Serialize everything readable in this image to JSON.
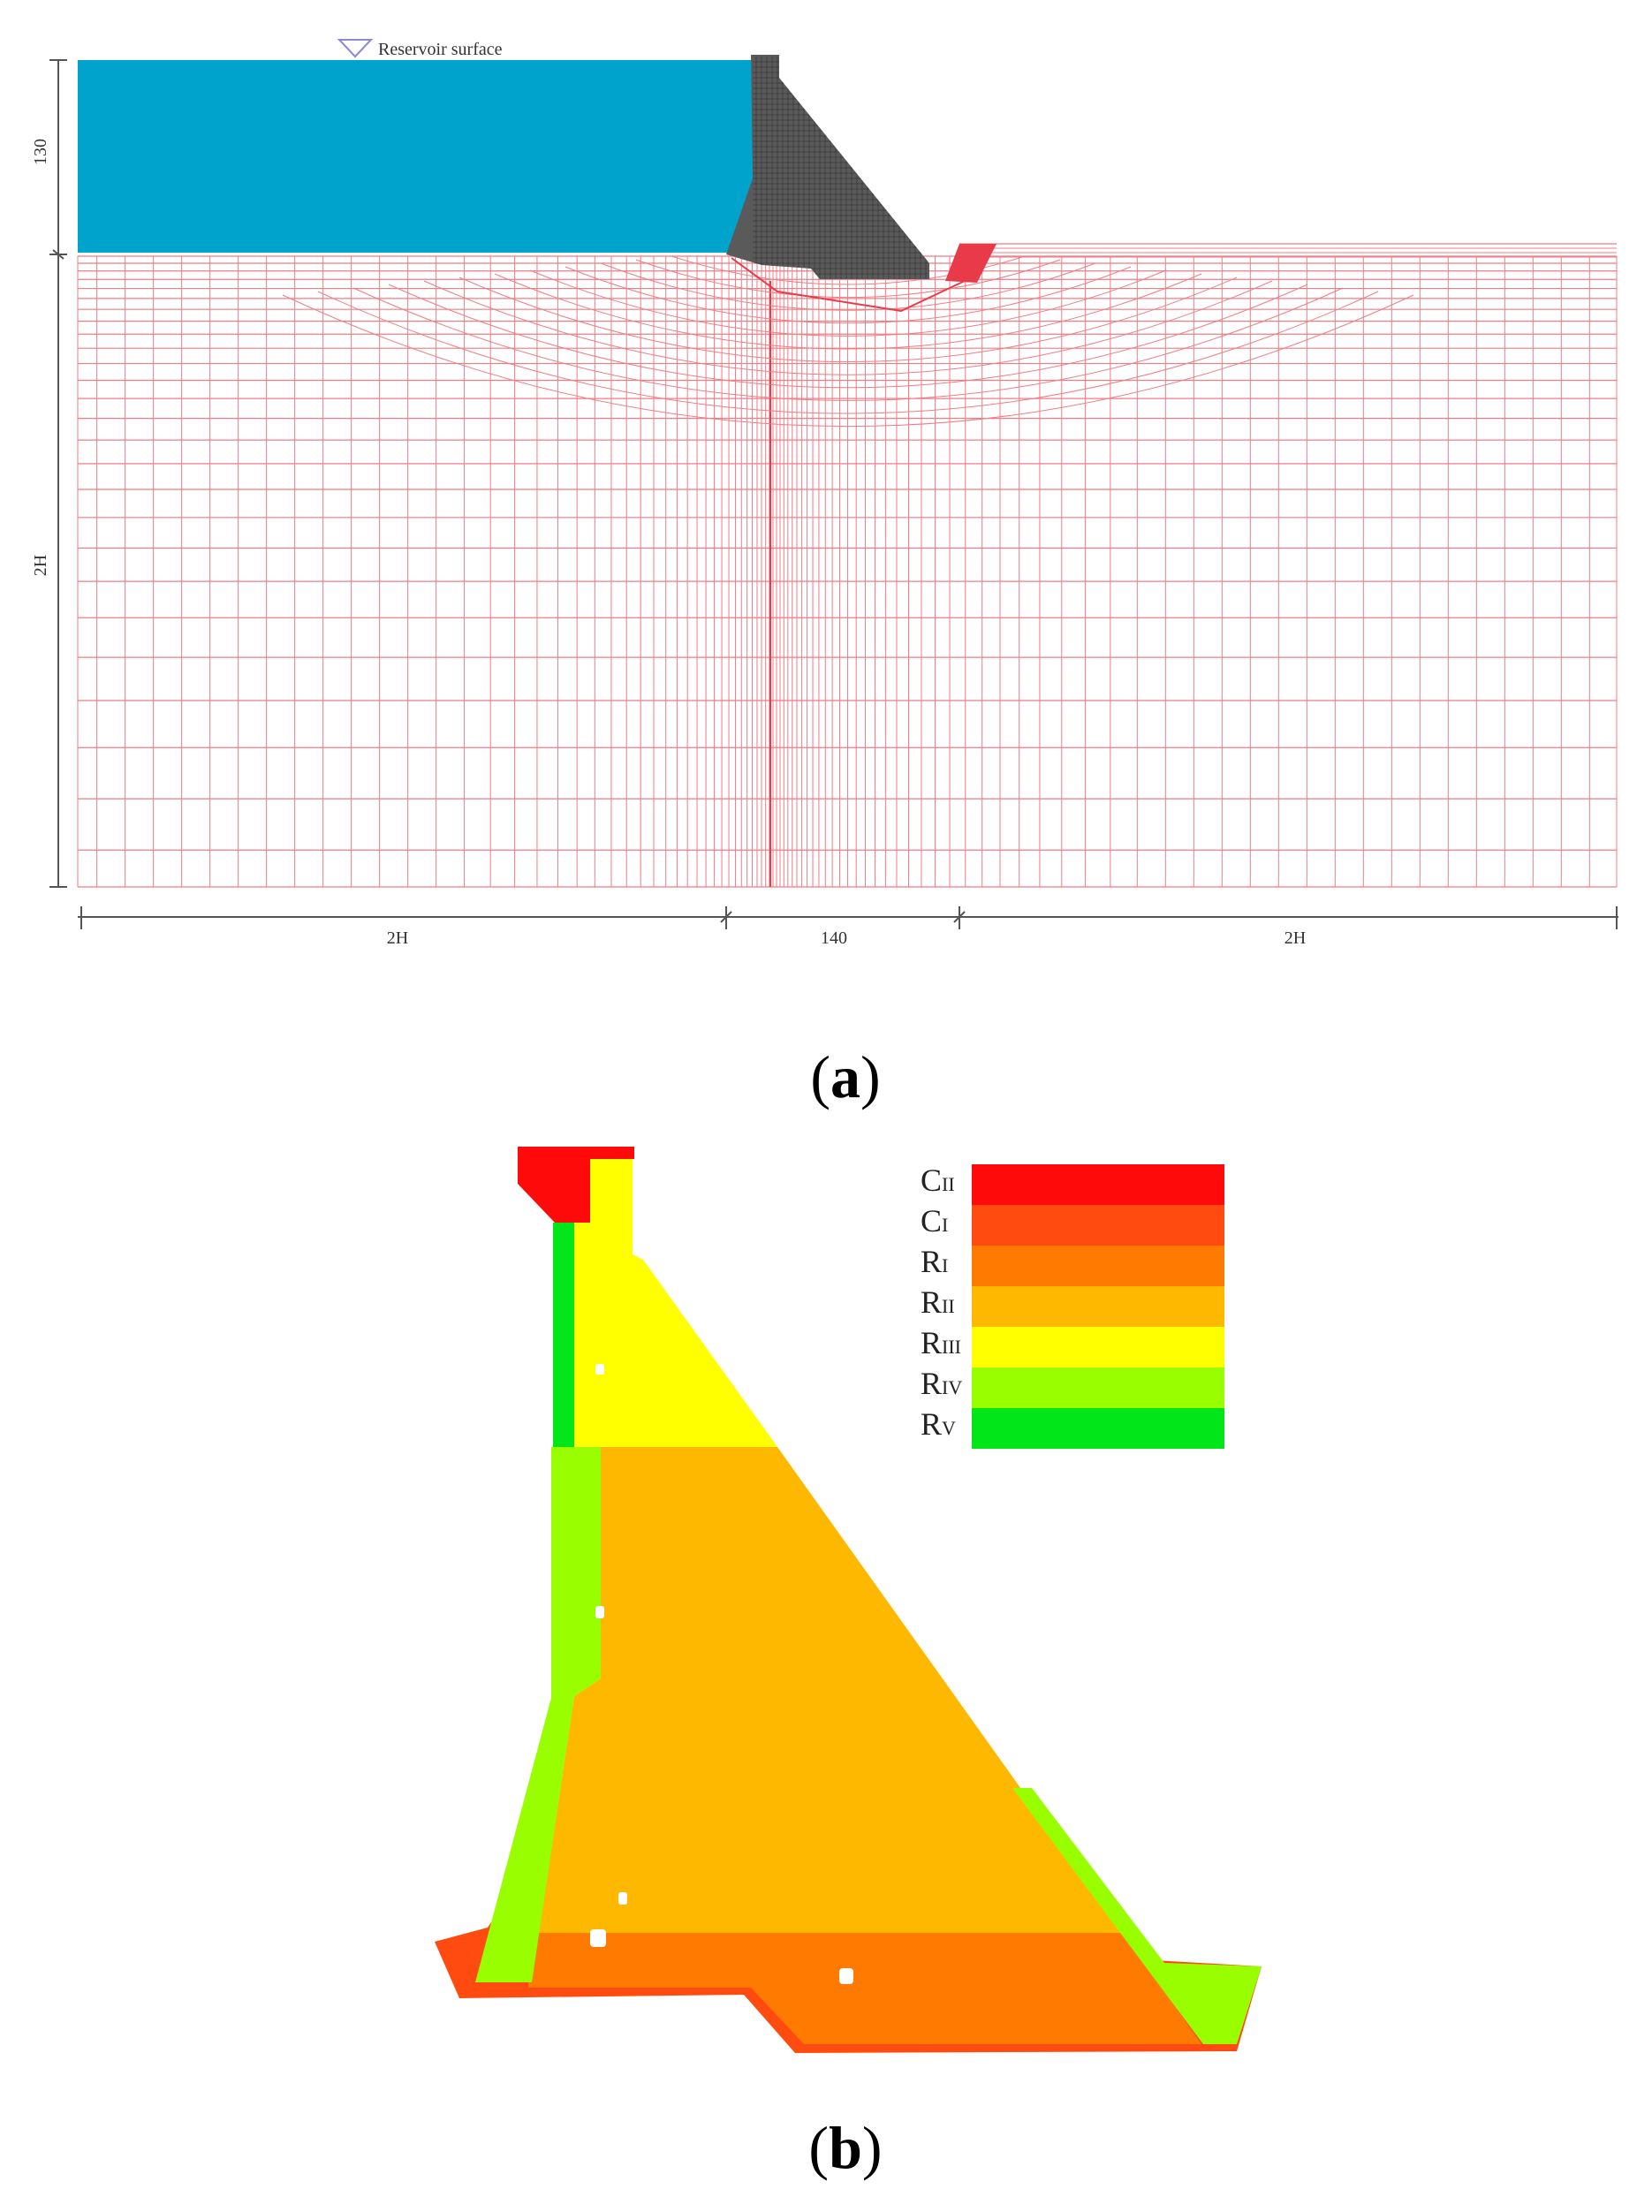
{
  "panel_a": {
    "reservoir_label": "Reservoir surface",
    "dim_height_top": "130",
    "dim_height_bottom": "2H",
    "dim_width_left": "2H",
    "dim_width_middle": "140",
    "dim_width_right": "2H",
    "caption": {
      "open": "(",
      "letter": "a",
      "close": ")"
    },
    "colors": {
      "water": "#00A3CC",
      "dam": "#5a5a5a",
      "mesh": "#F07C84",
      "mesh_strong": "#E83A48"
    }
  },
  "panel_b": {
    "caption": {
      "open": "(",
      "letter": "b",
      "close": ")"
    },
    "legend": [
      {
        "main": "C",
        "sub": "II",
        "color": "#FF0A0A"
      },
      {
        "main": "C",
        "sub": "I",
        "color": "#FF4A10"
      },
      {
        "main": "R",
        "sub": "I",
        "color": "#FF7A00"
      },
      {
        "main": "R",
        "sub": "II",
        "color": "#FFB800"
      },
      {
        "main": "R",
        "sub": "III",
        "color": "#FFFF00"
      },
      {
        "main": "R",
        "sub": "IV",
        "color": "#99FF00"
      },
      {
        "main": "R",
        "sub": "V",
        "color": "#00E619"
      }
    ]
  }
}
